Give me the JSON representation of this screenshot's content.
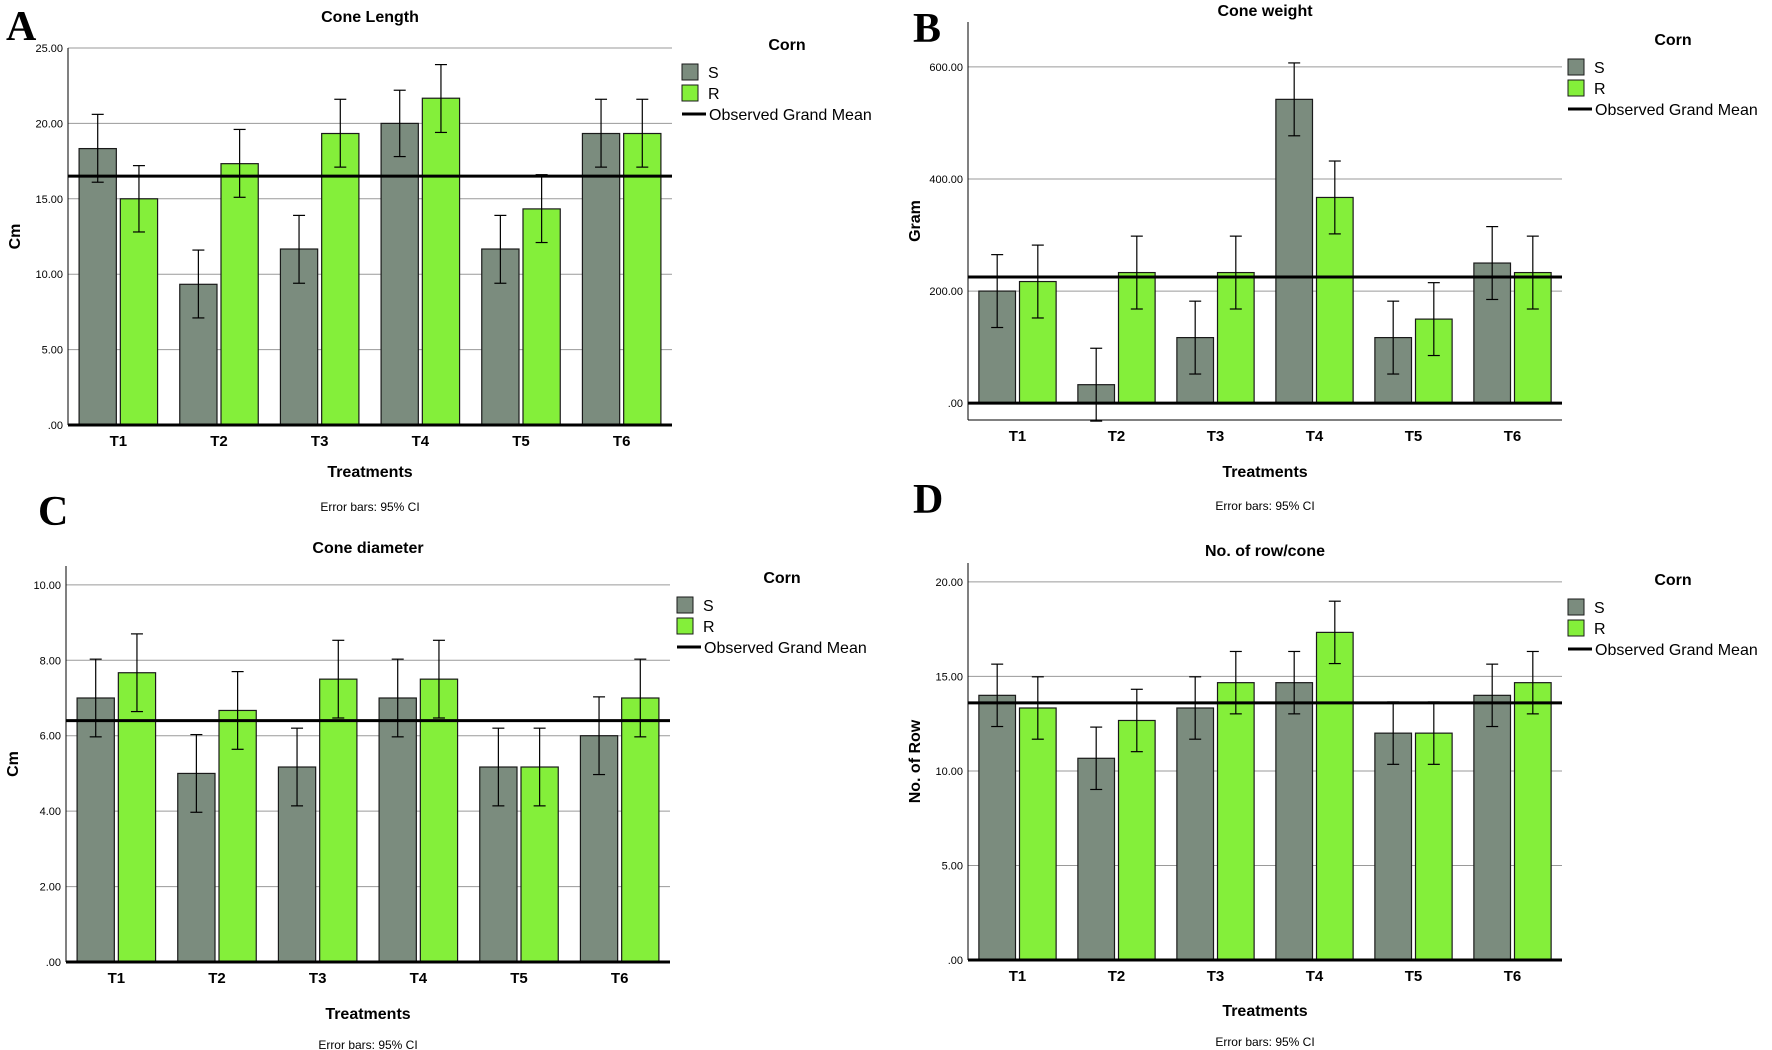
{
  "colors": {
    "s": "#7b8c7e",
    "r": "#84ef3a",
    "grid": "#9a9a9a",
    "axis": "#000000"
  },
  "legend_title": "Corn",
  "legend_items": [
    "S",
    "R",
    "Observed Grand Mean"
  ],
  "error_note": "Error bars: 95% CI",
  "chart_data": [
    {
      "panel": "A",
      "type": "bar",
      "title": "Cone Length",
      "xlabel": "Treatments",
      "ylabel": "Cm",
      "categories": [
        "T1",
        "T2",
        "T3",
        "T4",
        "T5",
        "T6"
      ],
      "ylim": [
        0,
        25
      ],
      "yticks": [
        0,
        5,
        10,
        15,
        20,
        25
      ],
      "ytick_labels": [
        ".00",
        "5.00",
        "10.00",
        "15.00",
        "20.00",
        "25.00"
      ],
      "grid": true,
      "grand_mean": 16.5,
      "series": [
        {
          "name": "S",
          "values": [
            18.33,
            9.33,
            11.67,
            20.0,
            11.67,
            19.33
          ],
          "err_low": [
            16.1,
            7.1,
            9.4,
            17.8,
            9.4,
            17.1
          ],
          "err_high": [
            20.6,
            11.6,
            13.9,
            22.2,
            13.9,
            21.6
          ]
        },
        {
          "name": "R",
          "values": [
            15.0,
            17.33,
            19.33,
            21.67,
            14.33,
            19.33
          ],
          "err_low": [
            12.8,
            15.1,
            17.1,
            19.4,
            12.1,
            17.1
          ],
          "err_high": [
            17.2,
            19.6,
            21.6,
            23.9,
            16.6,
            21.6
          ]
        }
      ]
    },
    {
      "panel": "B",
      "type": "bar",
      "title": "Cone weight",
      "xlabel": "Treatments",
      "ylabel": "Gram",
      "categories": [
        "T1",
        "T2",
        "T3",
        "T4",
        "T5",
        "T6"
      ],
      "ylim": [
        -30,
        680
      ],
      "yticks": [
        0,
        200,
        400,
        600
      ],
      "ytick_labels": [
        ".00",
        "200.00",
        "400.00",
        "600.00"
      ],
      "grid": true,
      "grand_mean": 225,
      "series": [
        {
          "name": "S",
          "values": [
            200,
            33,
            117,
            542,
            117,
            250
          ],
          "err_low": [
            135,
            -32,
            52,
            477,
            52,
            185
          ],
          "err_high": [
            265,
            98,
            182,
            607,
            182,
            315
          ]
        },
        {
          "name": "R",
          "values": [
            217,
            233,
            233,
            367,
            150,
            233
          ],
          "err_low": [
            152,
            168,
            168,
            302,
            85,
            168
          ],
          "err_high": [
            282,
            298,
            298,
            432,
            215,
            298
          ]
        }
      ]
    },
    {
      "panel": "C",
      "type": "bar",
      "title": "Cone diameter",
      "xlabel": "Treatments",
      "ylabel": "Cm",
      "categories": [
        "T1",
        "T2",
        "T3",
        "T4",
        "T5",
        "T6"
      ],
      "ylim": [
        0,
        10.5
      ],
      "yticks": [
        0,
        2,
        4,
        6,
        8,
        10
      ],
      "ytick_labels": [
        ".00",
        "2.00",
        "4.00",
        "6.00",
        "8.00",
        "10.00"
      ],
      "grid": true,
      "grand_mean": 6.4,
      "series": [
        {
          "name": "S",
          "values": [
            7.0,
            5.0,
            5.17,
            7.0,
            5.17,
            6.0
          ],
          "err_low": [
            5.97,
            3.97,
            4.14,
            5.97,
            4.14,
            4.97
          ],
          "err_high": [
            8.03,
            6.03,
            6.2,
            8.03,
            6.2,
            7.03
          ]
        },
        {
          "name": "R",
          "values": [
            7.67,
            6.67,
            7.5,
            7.5,
            5.17,
            7.0
          ],
          "err_low": [
            6.64,
            5.64,
            6.47,
            6.47,
            4.14,
            5.97
          ],
          "err_high": [
            8.7,
            7.7,
            8.53,
            8.53,
            6.2,
            8.03
          ]
        }
      ]
    },
    {
      "panel": "D",
      "type": "bar",
      "title": "No. of row/cone",
      "xlabel": "Treatments",
      "ylabel": "No. of Row",
      "categories": [
        "T1",
        "T2",
        "T3",
        "T4",
        "T5",
        "T6"
      ],
      "ylim": [
        0,
        21
      ],
      "yticks": [
        0,
        5,
        10,
        15,
        20
      ],
      "ytick_labels": [
        ".00",
        "5.00",
        "10.00",
        "15.00",
        "20.00"
      ],
      "grid": true,
      "grand_mean": 13.6,
      "series": [
        {
          "name": "S",
          "values": [
            14.0,
            10.67,
            13.33,
            14.67,
            12.0,
            14.0
          ],
          "err_low": [
            12.35,
            9.02,
            11.68,
            13.02,
            10.35,
            12.35
          ],
          "err_high": [
            15.65,
            12.32,
            14.98,
            16.32,
            13.65,
            15.65
          ]
        },
        {
          "name": "R",
          "values": [
            13.33,
            12.67,
            14.67,
            17.33,
            12.0,
            14.67
          ],
          "err_low": [
            11.68,
            11.02,
            13.02,
            15.68,
            10.35,
            13.02
          ],
          "err_high": [
            14.98,
            14.32,
            16.32,
            18.98,
            13.65,
            16.32
          ]
        }
      ]
    }
  ]
}
